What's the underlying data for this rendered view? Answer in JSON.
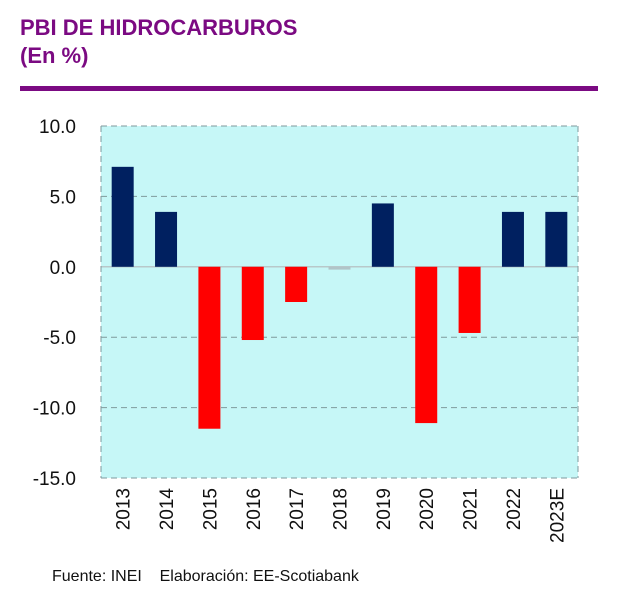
{
  "header": {
    "title": "PBI DE HIDROCARBUROS",
    "subtitle": "(En %)",
    "accent_color": "#7b0a82"
  },
  "footer": {
    "source": "Fuente: INEI",
    "elaboration": "Elaboración: EE-Scotiabank"
  },
  "chart_data": {
    "type": "bar",
    "title": "PBI DE HIDROCARBUROS",
    "subtitle": "(En %)",
    "xlabel": "",
    "ylabel": "",
    "categories": [
      "2013",
      "2014",
      "2015",
      "2016",
      "2017",
      "2018",
      "2019",
      "2020",
      "2021",
      "2022",
      "2023E"
    ],
    "values": [
      7.1,
      3.9,
      -11.5,
      -5.2,
      -2.5,
      -0.2,
      4.5,
      -11.1,
      -4.7,
      3.9,
      3.9
    ],
    "ylim": [
      -15,
      10
    ],
    "yticks": [
      10,
      5,
      0,
      -5,
      -10,
      -15
    ],
    "ytick_labels": [
      "10.0",
      "5.0",
      "0.0",
      "-5.0",
      "-10.0",
      "-15.0"
    ],
    "grid": true,
    "legend": "none",
    "colors": {
      "positive": "#002060",
      "negative": "#ff0000",
      "near_zero": "#b0c4c8",
      "plot_background": "#c6f7f7",
      "gridline": "#7f9a9c"
    }
  }
}
